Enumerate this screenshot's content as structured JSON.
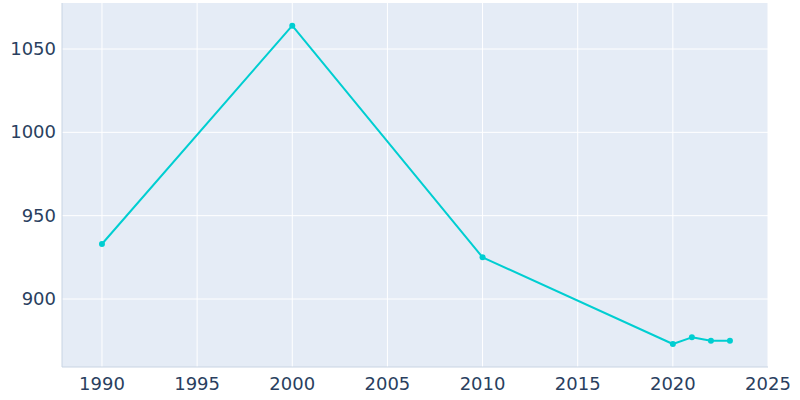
{
  "chart_data": {
    "type": "line",
    "x": [
      1990,
      2000,
      2010,
      2020,
      2021,
      2022,
      2023
    ],
    "values": [
      933,
      1064,
      925,
      873,
      877,
      875,
      875
    ],
    "color": "#00ced1",
    "marker": "circle",
    "xlim": [
      1987.9,
      2025
    ],
    "xticks": [
      1990,
      1995,
      2000,
      2005,
      2010,
      2015,
      2020,
      2025
    ],
    "ylim": [
      859.2,
      1077.6
    ],
    "yticks": [
      900,
      950,
      1000,
      1050
    ],
    "grid": true
  }
}
